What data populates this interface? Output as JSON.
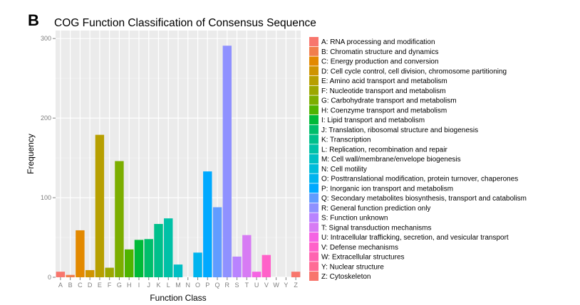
{
  "panel_label": "B",
  "chart_data": {
    "type": "bar",
    "title": "COG Function Classification of Consensus Sequence",
    "xlabel": "Function Class",
    "ylabel": "Frequency",
    "ylim": [
      0,
      310
    ],
    "yticks": [
      0,
      100,
      200,
      300
    ],
    "grid": true,
    "legend_position": "right",
    "categories": [
      "A",
      "B",
      "C",
      "D",
      "E",
      "F",
      "G",
      "H",
      "I",
      "J",
      "K",
      "L",
      "M",
      "N",
      "O",
      "P",
      "Q",
      "R",
      "S",
      "T",
      "U",
      "V",
      "W",
      "Y",
      "Z"
    ],
    "values": [
      7,
      3,
      59,
      9,
      179,
      12,
      146,
      35,
      47,
      48,
      67,
      74,
      16,
      0,
      31,
      133,
      88,
      291,
      26,
      53,
      7,
      28,
      0,
      0,
      7
    ],
    "colors": [
      "#F8766D",
      "#F17E4C",
      "#E38900",
      "#CF9400",
      "#B79F00",
      "#9CA700",
      "#7CAE00",
      "#4FB400",
      "#00BA38",
      "#00BE6B",
      "#00C08B",
      "#00C1A7",
      "#00BFC4",
      "#00BCDB",
      "#00B4EF",
      "#00A9FF",
      "#619CFF",
      "#8F91FF",
      "#B983FF",
      "#D77BF4",
      "#F564E3",
      "#FF61C9",
      "#FF64B0",
      "#FF6C95",
      "#F8766D"
    ],
    "legend": [
      "A: RNA processing and modification",
      "B: Chromatin structure and dynamics",
      "C: Energy production and conversion",
      "D: Cell cycle control, cell division, chromosome partitioning",
      "E: Amino acid transport and metabolism",
      "F: Nucleotide transport and metabolism",
      "G: Carbohydrate transport and metabolism",
      "H: Coenzyme transport and metabolism",
      "I: Lipid transport and metabolism",
      "J: Translation, ribosomal structure and biogenesis",
      "K: Transcription",
      "L: Replication, recombination and repair",
      "M: Cell wall/membrane/envelope biogenesis",
      "N: Cell motility",
      "O: Posttranslational modification, protein turnover, chaperones",
      "P: Inorganic ion transport and metabolism",
      "Q: Secondary metabolites biosynthesis, transport and catabolism",
      "R: General function prediction only",
      "S: Function unknown",
      "T: Signal transduction mechanisms",
      "U: Intracellular trafficking, secretion, and vesicular transport",
      "V: Defense mechanisms",
      "W: Extracellular structures",
      "Y: Nuclear structure",
      "Z: Cytoskeleton"
    ]
  }
}
